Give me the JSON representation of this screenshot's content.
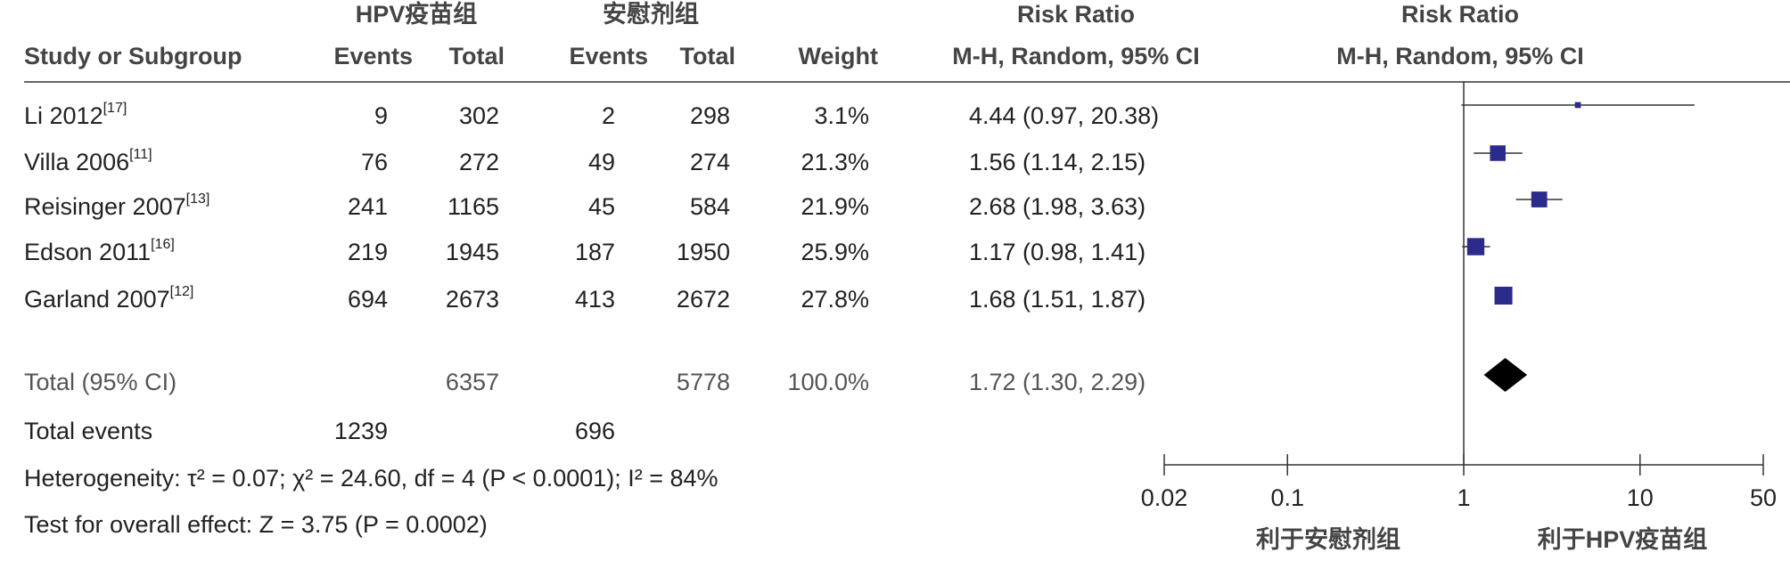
{
  "chart_data": {
    "type": "forest",
    "group_headers": [
      "HPV疫苗组",
      "安慰剂组"
    ],
    "columns": [
      "Study or Subgroup",
      "Events",
      "Total",
      "Events",
      "Total",
      "Weight"
    ],
    "effect_header": {
      "title": "Risk Ratio",
      "method": "M-H, Random, 95% CI"
    },
    "plot_header": {
      "title": "Risk Ratio",
      "method": "M-H, Random, 95% CI"
    },
    "studies": [
      {
        "name": "Li 2012",
        "ref": "[17]",
        "events1": 9,
        "total1": 302,
        "events2": 2,
        "total2": 298,
        "weight": 3.1,
        "weight_label": "3.1%",
        "rr": 4.44,
        "ci_low": 0.97,
        "ci_high": 20.38,
        "ci_label": "4.44 (0.97, 20.38)"
      },
      {
        "name": "Villa 2006",
        "ref": "[11]",
        "events1": 76,
        "total1": 272,
        "events2": 49,
        "total2": 274,
        "weight": 21.3,
        "weight_label": "21.3%",
        "rr": 1.56,
        "ci_low": 1.14,
        "ci_high": 2.15,
        "ci_label": "1.56 (1.14, 2.15)"
      },
      {
        "name": "Reisinger 2007",
        "ref": "[13]",
        "events1": 241,
        "total1": 1165,
        "events2": 45,
        "total2": 584,
        "weight": 21.9,
        "weight_label": "21.9%",
        "rr": 2.68,
        "ci_low": 1.98,
        "ci_high": 3.63,
        "ci_label": "2.68 (1.98, 3.63)"
      },
      {
        "name": "Edson 2011",
        "ref": "[16]",
        "events1": 219,
        "total1": 1945,
        "events2": 187,
        "total2": 1950,
        "weight": 25.9,
        "weight_label": "25.9%",
        "rr": 1.17,
        "ci_low": 0.98,
        "ci_high": 1.41,
        "ci_label": "1.17 (0.98, 1.41)"
      },
      {
        "name": "Garland 2007",
        "ref": "[12]",
        "events1": 694,
        "total1": 2673,
        "events2": 413,
        "total2": 2672,
        "weight": 27.8,
        "weight_label": "27.8%",
        "rr": 1.68,
        "ci_low": 1.51,
        "ci_high": 1.87,
        "ci_label": "1.68 (1.51, 1.87)"
      }
    ],
    "total": {
      "name": "Total (95% CI)",
      "total1": 6357,
      "total2": 5778,
      "weight_label": "100.0%",
      "rr": 1.72,
      "ci_low": 1.3,
      "ci_high": 2.29,
      "ci_label": "1.72 (1.30, 2.29)"
    },
    "total_events": {
      "name": "Total events",
      "events1": 1239,
      "events2": 696
    },
    "heterogeneity": "Heterogeneity: τ² = 0.07; χ² = 24.60, df = 4 (P < 0.0001); I² = 84%",
    "overall_effect": "Test for overall effect: Z = 3.75 (P = 0.0002)",
    "xlim": [
      0.02,
      50
    ],
    "xticks": [
      0.02,
      0.1,
      1,
      10,
      50
    ],
    "log_x": true,
    "favours": [
      "利于安慰剂组",
      "利于HPV疫苗组"
    ],
    "color": "#2b2b8c"
  }
}
